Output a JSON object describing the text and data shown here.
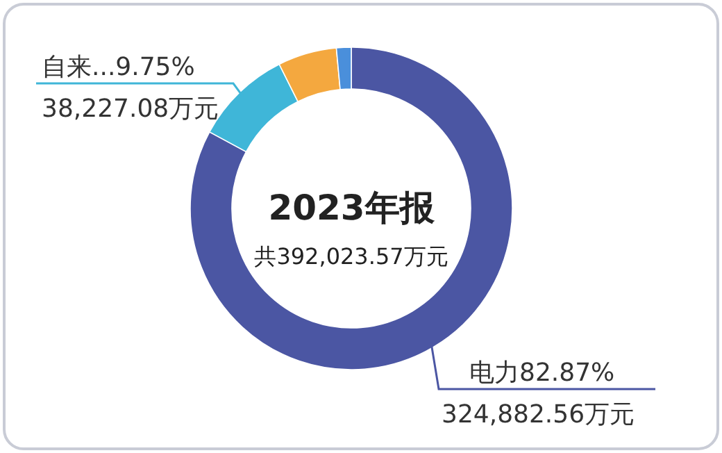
{
  "chart_data": {
    "type": "donut",
    "title": "2023年报",
    "subtitle": "共392,023.57万元",
    "categories": [
      "电力",
      "自来...",
      null,
      null
    ],
    "values": [
      82.87,
      9.75,
      5.9,
      1.48
    ],
    "value_labels": [
      "82.87%",
      "9.75%",
      null,
      null
    ],
    "colors": [
      "#4b56a3",
      "#3fb6d8",
      "#f4a83f",
      "#4a8fdb"
    ],
    "annotations": [
      "324,882.56万元",
      "38,227.08万元",
      null,
      null
    ]
  }
}
